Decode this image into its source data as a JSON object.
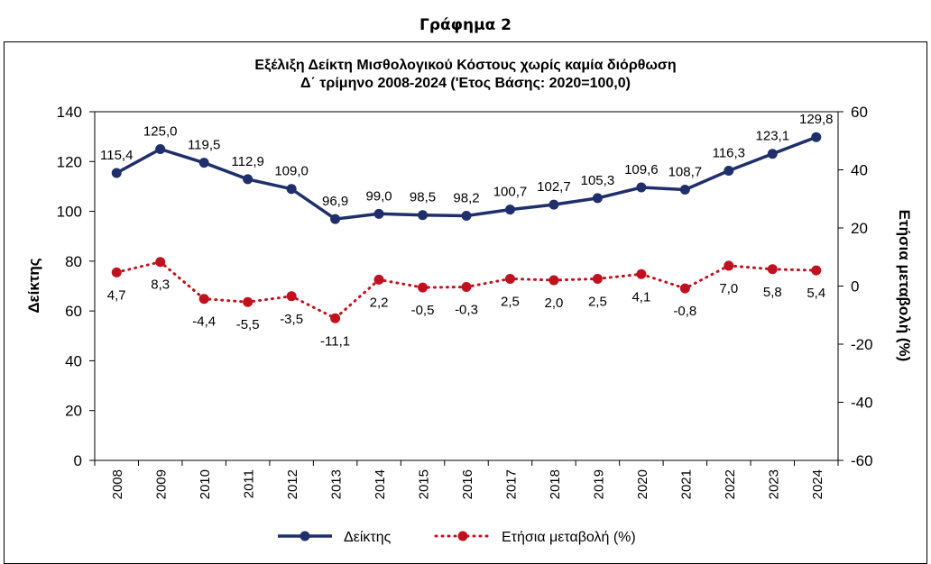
{
  "heading": "Γράφημα 2",
  "chart_data": {
    "type": "line",
    "title": "Εξέλιξη Δείκτη Μισθολογικού Κόστους χωρίς καμία διόρθωση",
    "subtitle": "Δ΄ τρίμηνο 2008-2024 ('Ετος Βάσης: 2020=100,0)",
    "ylabel": "Δείκτης",
    "y2label": "Ετήσια μεταβολή (%)",
    "categories": [
      "2008",
      "2009",
      "2010",
      "2011",
      "2012",
      "2013",
      "2014",
      "2015",
      "2016",
      "2017",
      "2018",
      "2019",
      "2020",
      "2021",
      "2022",
      "2023",
      "2024"
    ],
    "ylim": [
      0,
      140
    ],
    "yticks": [
      "0",
      "20",
      "40",
      "60",
      "80",
      "100",
      "120",
      "140"
    ],
    "y2lim": [
      -60,
      60
    ],
    "y2ticks": [
      "-60",
      "-40",
      "-20",
      "0",
      "20",
      "40",
      "60"
    ],
    "grid": false,
    "legend_position": "bottom",
    "series": [
      {
        "name": "Δείκτης",
        "axis": "left",
        "style": "solid",
        "color": "#1f2f6b",
        "values": [
          115.4,
          125.0,
          119.5,
          112.9,
          109.0,
          96.9,
          99.0,
          98.5,
          98.2,
          100.7,
          102.7,
          105.3,
          109.6,
          108.7,
          116.3,
          123.1,
          129.8
        ],
        "labels": [
          "115,4",
          "125,0",
          "119,5",
          "112,9",
          "109,0",
          "96,9",
          "99,0",
          "98,5",
          "98,2",
          "100,7",
          "102,7",
          "105,3",
          "109,6",
          "108,7",
          "116,3",
          "123,1",
          "129,8"
        ]
      },
      {
        "name": "Ετήσια μεταβολή (%)",
        "axis": "right",
        "style": "dotted",
        "color": "#c0121e",
        "values": [
          4.7,
          8.3,
          -4.4,
          -5.5,
          -3.5,
          -11.1,
          2.2,
          -0.5,
          -0.3,
          2.5,
          2.0,
          2.5,
          4.1,
          -0.8,
          7.0,
          5.8,
          5.4
        ],
        "labels": [
          "4,7",
          "8,3",
          "-4,4",
          "-5,5",
          "-3,5",
          "-11,1",
          "2,2",
          "-0,5",
          "-0,3",
          "2,5",
          "2,0",
          "2,5",
          "4,1",
          "-0,8",
          "7,0",
          "5,8",
          "5,4"
        ]
      }
    ]
  }
}
